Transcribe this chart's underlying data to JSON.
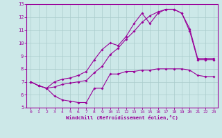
{
  "xlabel": "Windchill (Refroidissement éolien,°C)",
  "bg_color": "#cce8e8",
  "line_color": "#990099",
  "grid_color": "#aacccc",
  "xlim": [
    -0.5,
    23.5
  ],
  "ylim": [
    5,
    13
  ],
  "xticks": [
    0,
    1,
    2,
    3,
    4,
    5,
    6,
    7,
    8,
    9,
    10,
    11,
    12,
    13,
    14,
    15,
    16,
    17,
    18,
    19,
    20,
    21,
    22,
    23
  ],
  "yticks": [
    5,
    6,
    7,
    8,
    9,
    10,
    11,
    12,
    13
  ],
  "line1_x": [
    0,
    1,
    2,
    3,
    4,
    5,
    6,
    7,
    8,
    9,
    10,
    11,
    12,
    13,
    14,
    15,
    16,
    17,
    18,
    19,
    20,
    21,
    22,
    23
  ],
  "line1_y": [
    7.0,
    6.7,
    6.5,
    5.9,
    5.6,
    5.5,
    5.4,
    5.4,
    6.5,
    6.5,
    7.6,
    7.6,
    7.8,
    7.8,
    7.9,
    7.9,
    8.0,
    8.0,
    8.0,
    8.0,
    7.9,
    7.5,
    7.4,
    7.4
  ],
  "line2_x": [
    0,
    1,
    2,
    3,
    4,
    5,
    6,
    7,
    8,
    9,
    10,
    11,
    12,
    13,
    14,
    15,
    16,
    17,
    18,
    19,
    20,
    21,
    22,
    23
  ],
  "line2_y": [
    7.0,
    6.7,
    6.5,
    7.0,
    7.2,
    7.3,
    7.5,
    7.8,
    8.7,
    9.5,
    10.0,
    9.8,
    10.5,
    11.5,
    12.3,
    11.5,
    12.3,
    12.6,
    12.6,
    12.3,
    10.9,
    8.7,
    8.7,
    8.7
  ],
  "line3_x": [
    0,
    1,
    2,
    3,
    4,
    5,
    6,
    7,
    8,
    9,
    10,
    11,
    12,
    13,
    14,
    15,
    16,
    17,
    18,
    19,
    20,
    21,
    22,
    23
  ],
  "line3_y": [
    7.0,
    6.7,
    6.5,
    6.6,
    6.8,
    6.9,
    7.0,
    7.1,
    7.7,
    8.2,
    9.1,
    9.6,
    10.3,
    10.9,
    11.6,
    12.1,
    12.4,
    12.6,
    12.6,
    12.3,
    11.1,
    8.8,
    8.8,
    8.8
  ]
}
